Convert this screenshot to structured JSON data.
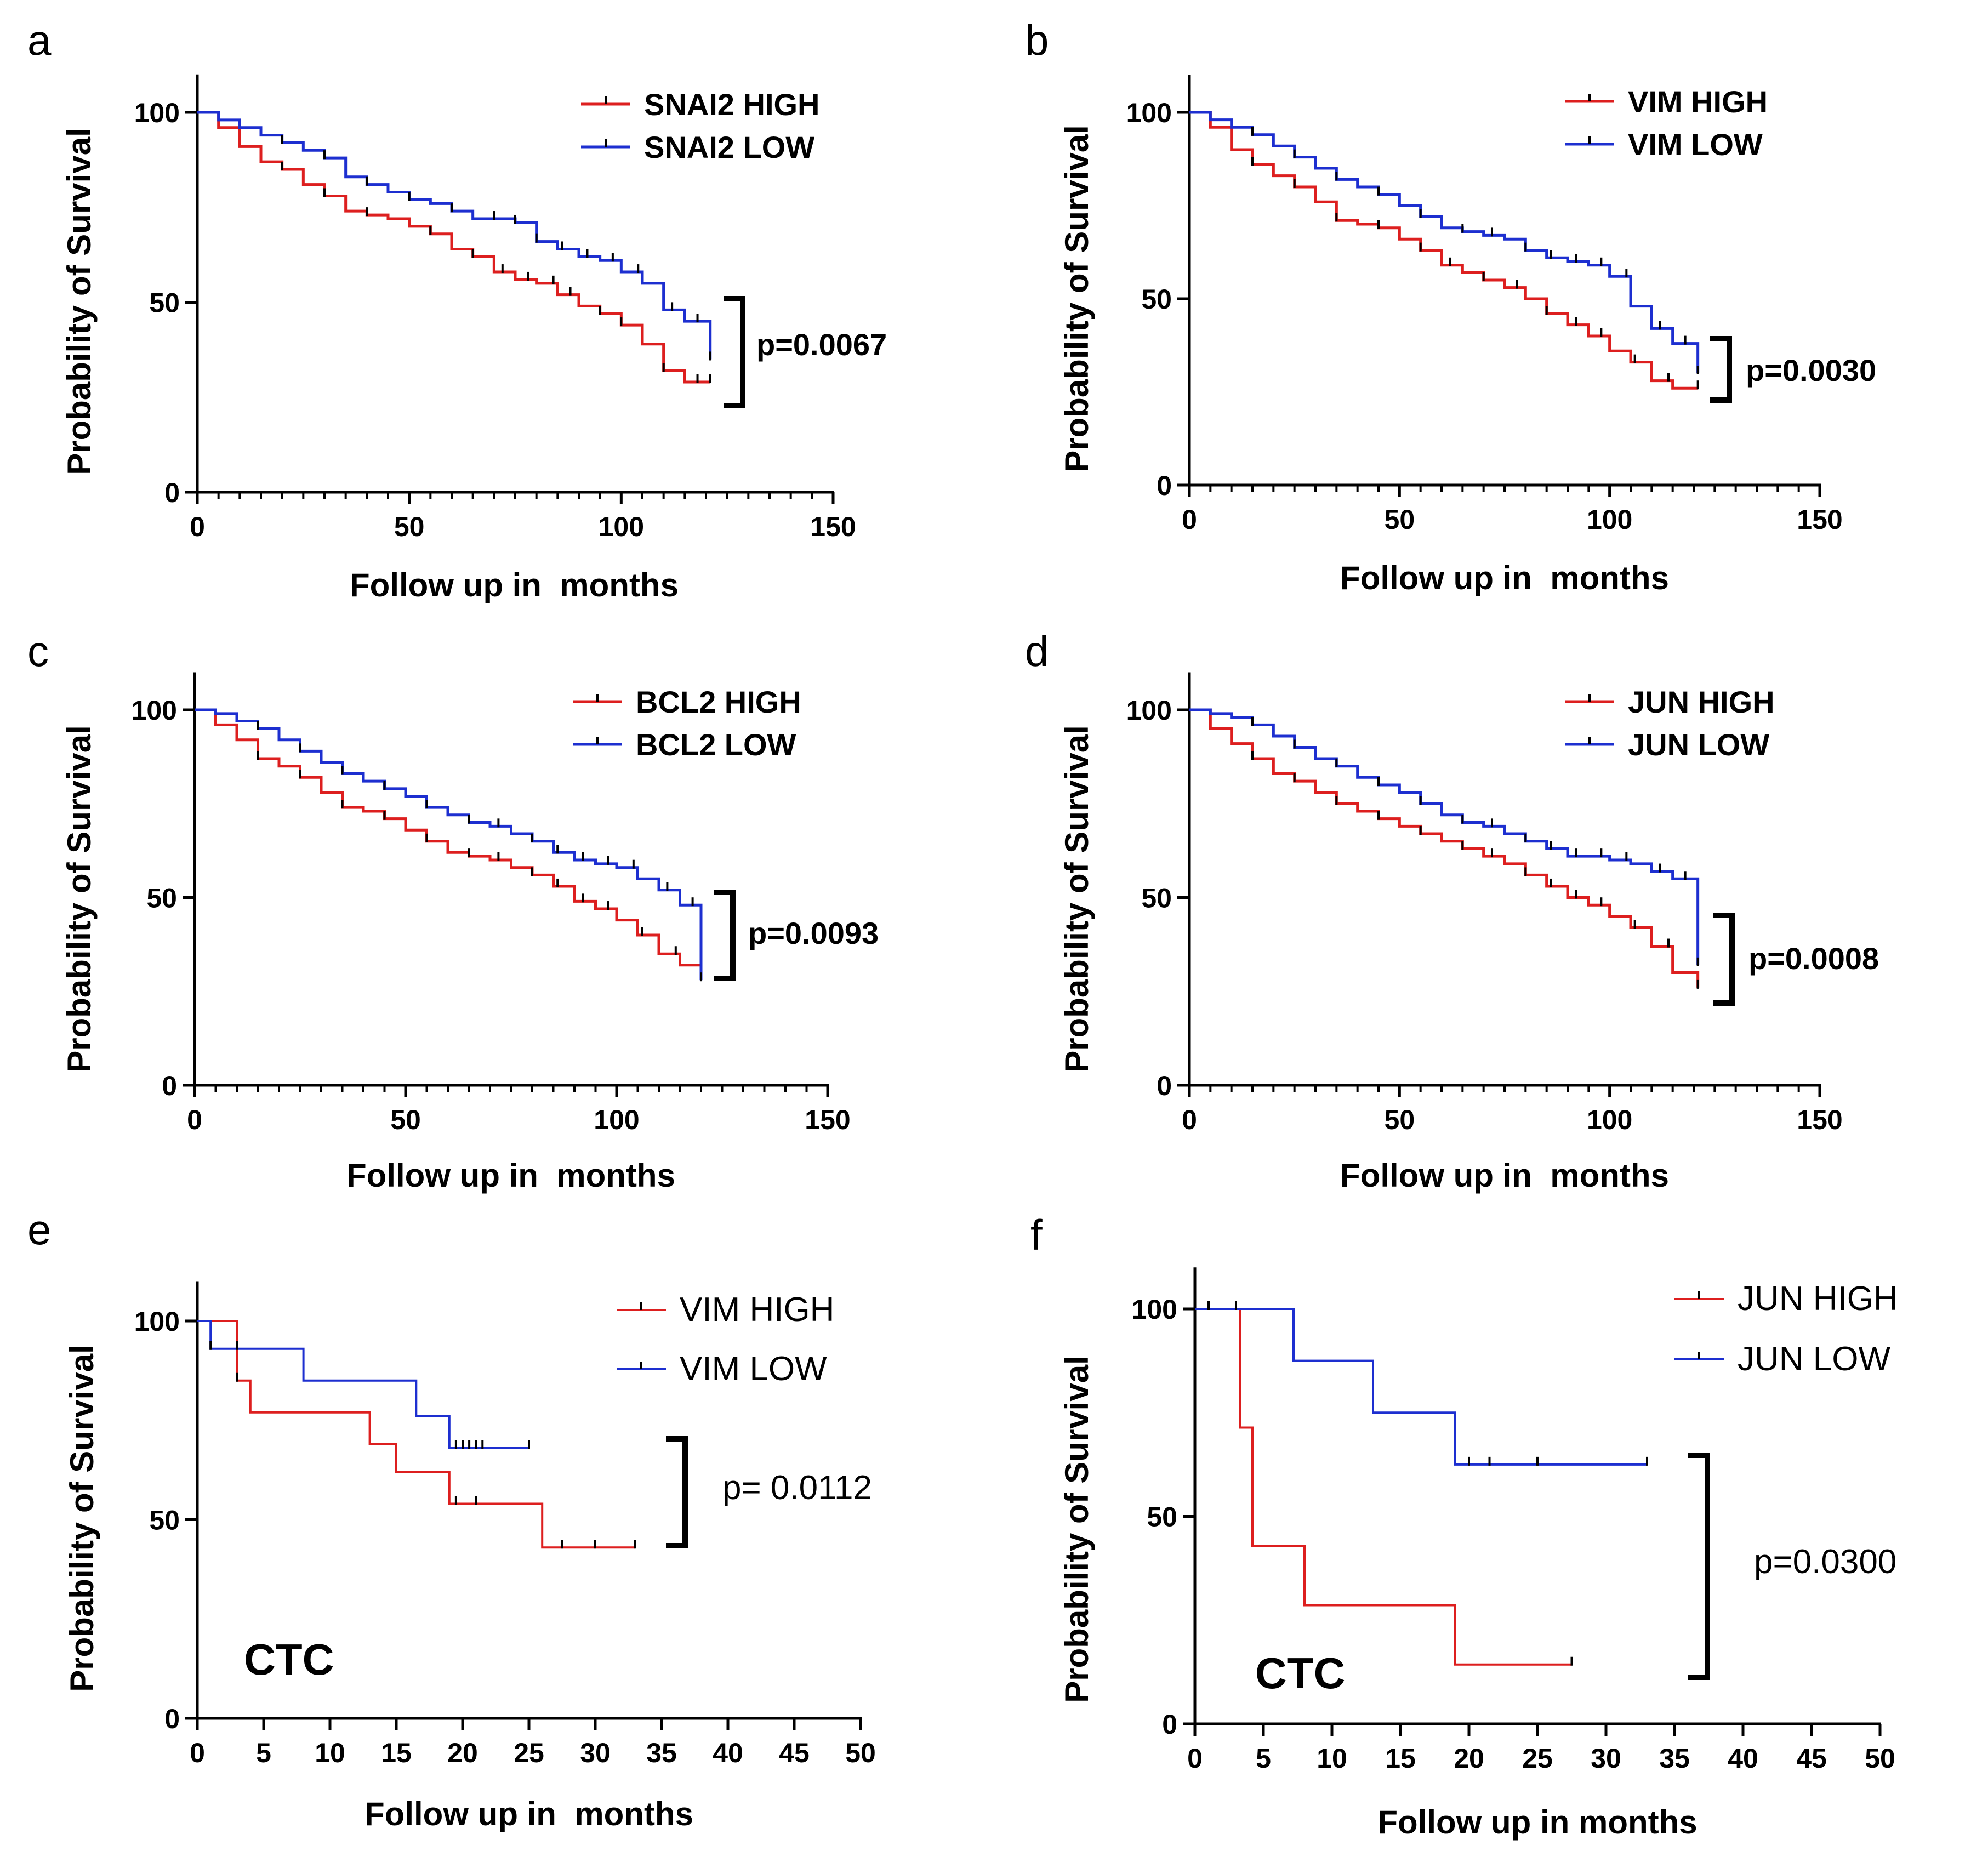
{
  "figure": {
    "colors": {
      "high": "#dd1f1f",
      "low": "#1d2fd0",
      "axis": "#000000",
      "censor": "#000000"
    }
  },
  "chart_data": [
    {
      "panel": "a",
      "type": "line",
      "subtype": "kaplan-meier",
      "xlabel": "Follow up in  months",
      "ylabel": "Probability of Survival",
      "xlim": [
        0,
        150
      ],
      "ylim": [
        0,
        110
      ],
      "xticks": [
        0,
        50,
        100,
        150
      ],
      "yticks": [
        0,
        50,
        100
      ],
      "legend_position": "top-right",
      "p_value": "p=0.0067",
      "series": [
        {
          "name": "SNAI2 HIGH",
          "color": "#dd1f1f",
          "x": [
            0,
            5,
            10,
            15,
            20,
            25,
            30,
            35,
            40,
            45,
            50,
            55,
            60,
            65,
            70,
            75,
            80,
            85,
            90,
            95,
            100,
            105,
            110,
            115,
            121
          ],
          "y": [
            100,
            96,
            91,
            87,
            85,
            81,
            78,
            74,
            73,
            72,
            70,
            68,
            64,
            62,
            58,
            56,
            55,
            52,
            49,
            47,
            44,
            39,
            32,
            29,
            29
          ],
          "censor_x": [
            20,
            30,
            40,
            55,
            65,
            72,
            78,
            84,
            88,
            95,
            100,
            110,
            118,
            121
          ]
        },
        {
          "name": "SNAI2 LOW",
          "color": "#1d2fd0",
          "x": [
            0,
            5,
            10,
            15,
            20,
            25,
            30,
            35,
            40,
            45,
            50,
            55,
            60,
            65,
            70,
            75,
            80,
            85,
            90,
            95,
            100,
            105,
            110,
            115,
            121
          ],
          "y": [
            100,
            98,
            96,
            94,
            92,
            90,
            88,
            83,
            81,
            79,
            77,
            76,
            74,
            72,
            72,
            71,
            66,
            64,
            62,
            61,
            58,
            55,
            48,
            45,
            35
          ],
          "censor_x": [
            20,
            30,
            40,
            50,
            60,
            70,
            75,
            80,
            86,
            92,
            98,
            104,
            112,
            118,
            121
          ]
        }
      ]
    },
    {
      "panel": "b",
      "type": "line",
      "subtype": "kaplan-meier",
      "xlabel": "Follow up in  months",
      "ylabel": "Probability of Survival",
      "xlim": [
        0,
        150
      ],
      "ylim": [
        0,
        110
      ],
      "xticks": [
        0,
        50,
        100,
        150
      ],
      "yticks": [
        0,
        50,
        100
      ],
      "legend_position": "top-right",
      "p_value": "p=0.0030",
      "series": [
        {
          "name": "VIM HIGH",
          "color": "#dd1f1f",
          "x": [
            0,
            5,
            10,
            15,
            20,
            25,
            30,
            35,
            40,
            45,
            50,
            55,
            60,
            65,
            70,
            75,
            80,
            85,
            90,
            95,
            100,
            105,
            110,
            115,
            121
          ],
          "y": [
            100,
            96,
            90,
            86,
            83,
            80,
            76,
            71,
            70,
            69,
            66,
            63,
            59,
            57,
            55,
            53,
            50,
            46,
            43,
            40,
            36,
            33,
            28,
            26,
            26
          ],
          "censor_x": [
            15,
            25,
            35,
            45,
            55,
            62,
            70,
            78,
            85,
            92,
            98,
            106,
            114,
            121
          ]
        },
        {
          "name": "VIM LOW",
          "color": "#1d2fd0",
          "x": [
            0,
            5,
            10,
            15,
            20,
            25,
            30,
            35,
            40,
            45,
            50,
            55,
            60,
            65,
            70,
            75,
            80,
            85,
            90,
            95,
            100,
            105,
            110,
            115,
            121
          ],
          "y": [
            100,
            98,
            96,
            94,
            91,
            88,
            85,
            82,
            80,
            78,
            75,
            72,
            69,
            68,
            67,
            66,
            63,
            61,
            60,
            59,
            56,
            48,
            42,
            38,
            30
          ],
          "censor_x": [
            15,
            25,
            35,
            45,
            55,
            65,
            72,
            80,
            86,
            92,
            98,
            104,
            112,
            118,
            121
          ]
        }
      ]
    },
    {
      "panel": "c",
      "type": "line",
      "subtype": "kaplan-meier",
      "xlabel": "Follow up in  months",
      "ylabel": "Probability of Survival",
      "xlim": [
        0,
        150
      ],
      "ylim": [
        0,
        110
      ],
      "xticks": [
        0,
        50,
        100,
        150
      ],
      "yticks": [
        0,
        50,
        100
      ],
      "legend_position": "top-right",
      "p_value": "p=0.0093",
      "series": [
        {
          "name": "BCL2 HIGH",
          "color": "#dd1f1f",
          "x": [
            0,
            5,
            10,
            15,
            20,
            25,
            30,
            35,
            40,
            45,
            50,
            55,
            60,
            65,
            70,
            75,
            80,
            85,
            90,
            95,
            100,
            105,
            110,
            115,
            120
          ],
          "y": [
            100,
            96,
            92,
            87,
            85,
            82,
            78,
            74,
            73,
            71,
            68,
            65,
            62,
            61,
            60,
            58,
            56,
            53,
            49,
            47,
            44,
            40,
            35,
            32,
            30
          ],
          "censor_x": [
            15,
            25,
            35,
            45,
            55,
            65,
            72,
            80,
            86,
            92,
            98,
            106,
            114,
            120
          ]
        },
        {
          "name": "BCL2 LOW",
          "color": "#1d2fd0",
          "x": [
            0,
            5,
            10,
            15,
            20,
            25,
            30,
            35,
            40,
            45,
            50,
            55,
            60,
            65,
            70,
            75,
            80,
            85,
            90,
            95,
            100,
            105,
            110,
            115,
            120
          ],
          "y": [
            100,
            99,
            97,
            95,
            92,
            89,
            86,
            83,
            81,
            79,
            77,
            74,
            72,
            70,
            69,
            67,
            65,
            62,
            60,
            59,
            58,
            55,
            52,
            48,
            28
          ],
          "censor_x": [
            15,
            25,
            35,
            45,
            55,
            65,
            72,
            80,
            86,
            92,
            98,
            104,
            112,
            118,
            120
          ]
        }
      ]
    },
    {
      "panel": "d",
      "type": "line",
      "subtype": "kaplan-meier",
      "xlabel": "Follow up in  months",
      "ylabel": "Probability of Survival",
      "xlim": [
        0,
        150
      ],
      "ylim": [
        0,
        110
      ],
      "xticks": [
        0,
        50,
        100,
        150
      ],
      "yticks": [
        0,
        50,
        100
      ],
      "legend_position": "top-right",
      "p_value": "p=0.0008",
      "series": [
        {
          "name": "JUN HIGH",
          "color": "#dd1f1f",
          "x": [
            0,
            5,
            10,
            15,
            20,
            25,
            30,
            35,
            40,
            45,
            50,
            55,
            60,
            65,
            70,
            75,
            80,
            85,
            90,
            95,
            100,
            105,
            110,
            115,
            121
          ],
          "y": [
            100,
            95,
            91,
            87,
            83,
            81,
            78,
            75,
            73,
            71,
            69,
            67,
            65,
            63,
            61,
            59,
            56,
            53,
            50,
            48,
            45,
            42,
            37,
            30,
            26
          ],
          "censor_x": [
            15,
            25,
            35,
            45,
            55,
            65,
            72,
            80,
            86,
            92,
            98,
            106,
            114,
            121
          ]
        },
        {
          "name": "JUN LOW",
          "color": "#1d2fd0",
          "x": [
            0,
            5,
            10,
            15,
            20,
            25,
            30,
            35,
            40,
            45,
            50,
            55,
            60,
            65,
            70,
            75,
            80,
            85,
            90,
            95,
            100,
            105,
            110,
            115,
            121
          ],
          "y": [
            100,
            99,
            98,
            96,
            93,
            90,
            87,
            85,
            82,
            80,
            78,
            75,
            72,
            70,
            69,
            67,
            65,
            63,
            61,
            61,
            60,
            59,
            57,
            55,
            32
          ],
          "censor_x": [
            15,
            25,
            35,
            45,
            55,
            65,
            72,
            80,
            86,
            92,
            98,
            104,
            112,
            118,
            121
          ]
        }
      ]
    },
    {
      "panel": "e",
      "type": "line",
      "subtype": "kaplan-meier",
      "xlabel": "Follow up in  months",
      "ylabel": "Probability of Survival",
      "xlim": [
        0,
        50
      ],
      "ylim": [
        0,
        110
      ],
      "xticks": [
        0,
        5,
        10,
        15,
        20,
        25,
        30,
        35,
        40,
        45,
        50
      ],
      "yticks": [
        0,
        50,
        100
      ],
      "legend_position": "top-right",
      "p_value": "p= 0.0112",
      "annotation": "CTC",
      "series": [
        {
          "name": "VIM HIGH",
          "color": "#dd1f1f",
          "x": [
            0,
            3,
            4,
            13,
            15,
            19,
            26,
            33
          ],
          "y": [
            100,
            85,
            77,
            69,
            62,
            54,
            43,
            43
          ],
          "censor_x": [
            3,
            19.5,
            21,
            27.5,
            30,
            33
          ]
        },
        {
          "name": "VIM LOW",
          "color": "#1d2fd0",
          "x": [
            0,
            1,
            8,
            16.5,
            19,
            25
          ],
          "y": [
            100,
            93,
            85,
            76,
            68,
            68
          ],
          "censor_x": [
            1,
            3,
            19.5,
            20,
            20.5,
            21,
            21.5,
            25
          ]
        }
      ]
    },
    {
      "panel": "f",
      "type": "line",
      "subtype": "kaplan-meier",
      "xlabel": "Follow up in months",
      "ylabel": "Probability of Survival",
      "xlim": [
        0,
        50
      ],
      "ylim": [
        0,
        110
      ],
      "xticks": [
        0,
        5,
        10,
        15,
        20,
        25,
        30,
        35,
        40,
        45,
        50
      ],
      "yticks": [
        0,
        50,
        100
      ],
      "legend_position": "top-right",
      "p_value": "p=0.0300",
      "annotation": "CTC",
      "series": [
        {
          "name": "JUN HIGH",
          "color": "#dd1f1f",
          "x": [
            0,
            3.3,
            4.2,
            8,
            19,
            27.5
          ],
          "y": [
            100,
            71.4,
            42.9,
            28.6,
            14.3,
            14.3
          ],
          "censor_x": [
            1,
            3,
            27.5
          ]
        },
        {
          "name": "JUN LOW",
          "color": "#1d2fd0",
          "x": [
            0,
            7.2,
            13,
            19,
            33
          ],
          "y": [
            100,
            87.5,
            75,
            62.5,
            62.5
          ],
          "censor_x": [
            1,
            3,
            20,
            21.5,
            25,
            33
          ]
        }
      ]
    }
  ]
}
